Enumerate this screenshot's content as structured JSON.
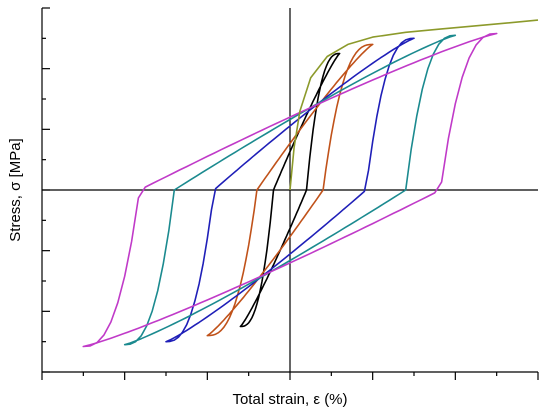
{
  "chart_data": {
    "type": "line",
    "xlabel": "Total strain, ε (%)",
    "ylabel": "Stress, σ [MPa]",
    "xlim": [
      -3.0,
      3.0
    ],
    "ylim": [
      -3.0,
      3.0
    ],
    "x_ticks_major": [
      -3.0,
      -2.0,
      -1.0,
      0.0,
      1.0,
      2.0,
      3.0
    ],
    "x_ticks_minor_step": 0.5,
    "y_ticks_major": [
      -3.0,
      -2.0,
      -1.0,
      0.0,
      1.0,
      2.0,
      3.0
    ],
    "y_ticks_minor_step": 0.5,
    "tick_labels_shown": false,
    "grid": false,
    "legend": "none",
    "initial_loading_curve": {
      "color": "#8c9a2b",
      "points": [
        [
          0.0,
          0.0
        ],
        [
          0.05,
          0.7
        ],
        [
          0.12,
          1.3
        ],
        [
          0.25,
          1.85
        ],
        [
          0.45,
          2.2
        ],
        [
          0.7,
          2.4
        ],
        [
          1.0,
          2.52
        ],
        [
          1.4,
          2.6
        ],
        [
          1.8,
          2.65
        ],
        [
          2.2,
          2.7
        ],
        [
          2.6,
          2.75
        ],
        [
          3.0,
          2.8
        ]
      ]
    },
    "loops": [
      {
        "color": "#000000",
        "strain_amplitude": 0.6,
        "peak_stress": 2.25,
        "recovery_strain": 0.2
      },
      {
        "color": "#c0521a",
        "strain_amplitude": 1.0,
        "peak_stress": 2.4,
        "recovery_strain": 0.4
      },
      {
        "color": "#1f1fb8",
        "strain_amplitude": 1.5,
        "peak_stress": 2.5,
        "recovery_strain": 0.92
      },
      {
        "color": "#1b8a8f",
        "strain_amplitude": 2.0,
        "peak_stress": 2.55,
        "recovery_strain": 1.4
      },
      {
        "color": "#c03ac8",
        "strain_amplitude": 2.5,
        "peak_stress": 2.58,
        "recovery_strain": 1.82
      }
    ]
  }
}
